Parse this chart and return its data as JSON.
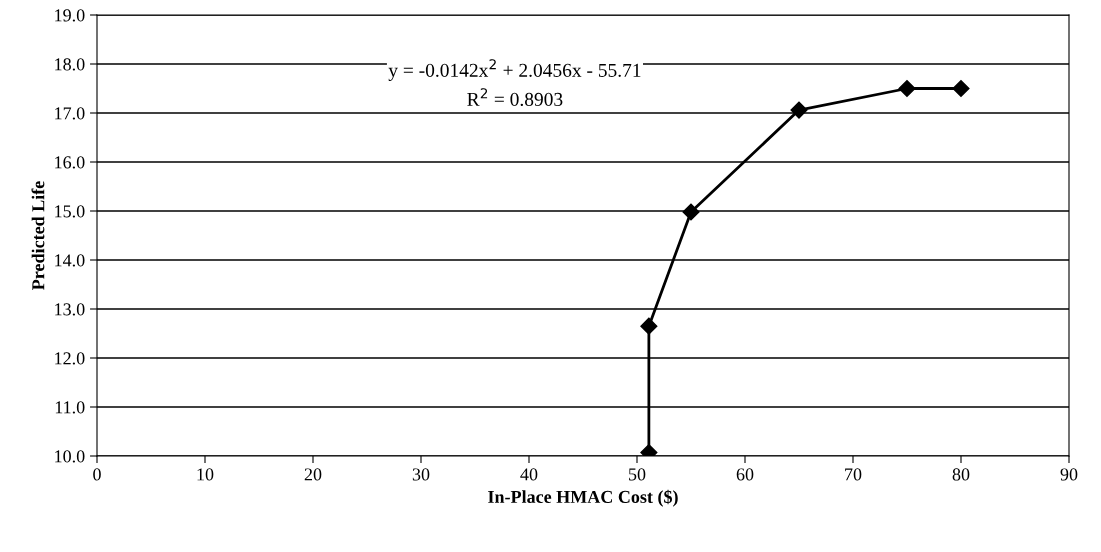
{
  "chart_data": {
    "type": "line",
    "xlabel": "In-Place HMAC Cost ($)",
    "ylabel": "Predicted Life",
    "x": [
      51.1,
      51.1,
      55,
      65,
      75,
      80
    ],
    "series": [
      {
        "color": "#000000",
        "values": [
          10.07,
          12.65,
          14.98,
          17.06,
          17.5,
          17.5
        ]
      }
    ],
    "marker": "diamond",
    "line_style": "solid",
    "grid": "y",
    "legend": false,
    "xlim": [
      0,
      90
    ],
    "xticks": [
      0,
      10,
      20,
      30,
      40,
      50,
      60,
      70,
      80,
      90
    ],
    "ylim": [
      10,
      19
    ],
    "yticks": [
      {
        "value": 10,
        "label": "10.0"
      },
      {
        "value": 11,
        "label": "11.0"
      },
      {
        "value": 12,
        "label": "12.0"
      },
      {
        "value": 13,
        "label": "13.0"
      },
      {
        "value": 14,
        "label": "14.0"
      },
      {
        "value": 15,
        "label": "15.0"
      },
      {
        "value": 16,
        "label": "16.0"
      },
      {
        "value": 17,
        "label": "17.0"
      },
      {
        "value": 18,
        "label": "18.0"
      },
      {
        "value": 19,
        "label": "19.0"
      }
    ],
    "annotations": [
      "y = -0.0142x$^{2}$ + 2.0456x - 55.71",
      "R$^{2}$ = 0.8903"
    ]
  }
}
